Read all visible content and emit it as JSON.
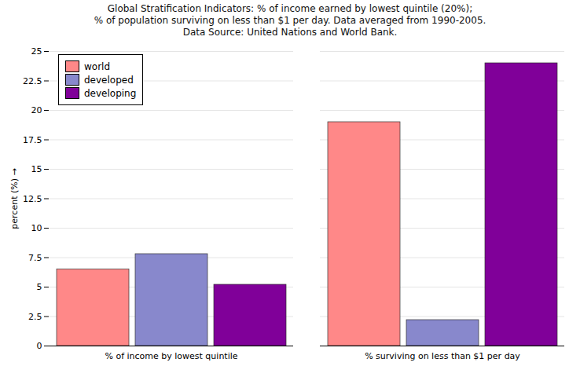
{
  "chart_data": {
    "type": "bar",
    "title": "Global Stratification Indicators: % of income earned by lowest quintile (20%);\n% of population surviving on less than $1 per day. Data averaged from 1990-2005.\nData Source: United Nations and World Bank.",
    "ylabel": "percent (%)",
    "categories": [
      "% of income by lowest quintile",
      "% surviving on less than $1 per day"
    ],
    "series": [
      {
        "name": "world",
        "color": "#ff8888",
        "values": [
          6.5,
          19.0
        ]
      },
      {
        "name": "developed",
        "color": "#8888cc",
        "values": [
          7.8,
          2.2
        ]
      },
      {
        "name": "developing",
        "color": "#800099",
        "values": [
          5.2,
          24.0
        ]
      }
    ],
    "ylim": [
      0,
      25
    ],
    "yticks": [
      0,
      2.5,
      5,
      7.5,
      10,
      12.5,
      15,
      17.5,
      20,
      22.5,
      25
    ],
    "grid": true,
    "legend": "upper left"
  }
}
